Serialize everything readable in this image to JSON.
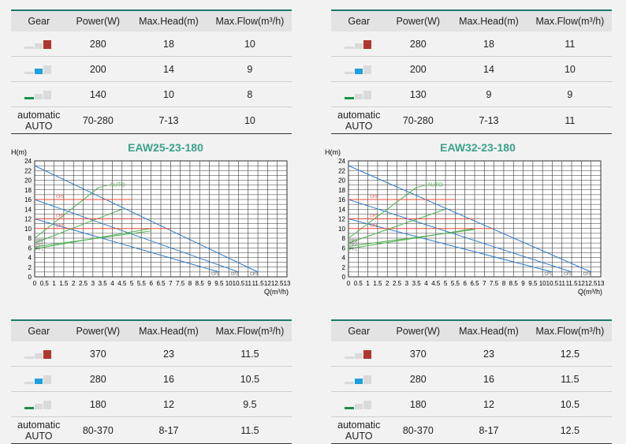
{
  "headers": [
    "Gear",
    "Power(W)",
    "Max.Head(m)",
    "Max.Flow(m³/h)"
  ],
  "colors": {
    "red": "#b0372f",
    "blue": "#1e9fe0",
    "green": "#18924a",
    "grid": "#333333",
    "curve_blue": "#2e7dc9",
    "curve_green": "#4caf50",
    "curve_red": "#e04b3a",
    "title": "#3aa28a",
    "header_line": "#1b7a6c"
  },
  "tables": [
    {
      "rows": [
        {
          "gear": "gear-3-icon",
          "power": "280",
          "head": "18",
          "flow": "10"
        },
        {
          "gear": "gear-2-icon",
          "power": "200",
          "head": "14",
          "flow": "9"
        },
        {
          "gear": "gear-1-icon",
          "power": "140",
          "head": "10",
          "flow": "8"
        },
        {
          "gear_l1": "automatic",
          "gear_l2": "AUTO",
          "power": "70-280",
          "head": "7-13",
          "flow": "10"
        }
      ]
    },
    {
      "rows": [
        {
          "gear": "gear-3-icon",
          "power": "280",
          "head": "18",
          "flow": "11"
        },
        {
          "gear": "gear-2-icon",
          "power": "200",
          "head": "14",
          "flow": "10"
        },
        {
          "gear": "gear-1-icon",
          "power": "130",
          "head": "9",
          "flow": "9"
        },
        {
          "gear_l1": "automatic",
          "gear_l2": "AUTO",
          "power": "70-280",
          "head": "7-13",
          "flow": "11"
        }
      ]
    },
    {
      "rows": [
        {
          "gear": "gear-3-icon",
          "power": "370",
          "head": "23",
          "flow": "11.5"
        },
        {
          "gear": "gear-2-icon",
          "power": "280",
          "head": "16",
          "flow": "10.5"
        },
        {
          "gear": "gear-1-icon",
          "power": "180",
          "head": "12",
          "flow": "9.5"
        },
        {
          "gear_l1": "automatic",
          "gear_l2": "AUTO",
          "power": "80-370",
          "head": "8-17",
          "flow": "11.5"
        }
      ]
    },
    {
      "rows": [
        {
          "gear": "gear-3-icon",
          "power": "370",
          "head": "23",
          "flow": "12.5"
        },
        {
          "gear": "gear-2-icon",
          "power": "280",
          "head": "16",
          "flow": "11.5"
        },
        {
          "gear": "gear-1-icon",
          "power": "180",
          "head": "12",
          "flow": "10.5"
        },
        {
          "gear_l1": "automatic",
          "gear_l2": "AUTO",
          "power": "80-370",
          "head": "8-17",
          "flow": "12.5"
        }
      ]
    }
  ],
  "chart_data": [
    {
      "type": "line",
      "title": "EAW25-23-180",
      "ylabel": "H(m)",
      "xlabel": "Q(m³/h)",
      "xlim": [
        0,
        13
      ],
      "ylim": [
        0,
        24
      ],
      "grid": true,
      "xticks": [
        "0",
        "0.5",
        "1",
        "1.5",
        "2",
        "2.5",
        "3",
        "3.5",
        "4",
        "4.5",
        "5",
        "5.5",
        "6",
        "6.5",
        "7",
        "7.5",
        "8",
        "8.5",
        "9",
        "9.5",
        "10",
        "10.5",
        "11",
        "11.5",
        "12",
        "12.5",
        "13"
      ],
      "yticks": [
        "0",
        "2",
        "4",
        "6",
        "8",
        "10",
        "12",
        "14",
        "16",
        "18",
        "20",
        "22",
        "24"
      ],
      "series": [
        {
          "color": "blue",
          "points": [
            [
              0,
              23
            ],
            [
              11.5,
              1
            ]
          ],
          "end_label": "CP3"
        },
        {
          "color": "blue",
          "points": [
            [
              0,
              16
            ],
            [
              10.5,
              1
            ]
          ],
          "end_label": "CP2"
        },
        {
          "color": "blue",
          "points": [
            [
              0,
              12
            ],
            [
              9.5,
              1
            ]
          ],
          "end_label": "CP1"
        },
        {
          "color": "green",
          "points": [
            [
              0,
              8
            ],
            [
              3.3,
              18.5
            ]
          ],
          "label": "AUTO"
        },
        {
          "color": "green",
          "points": [
            [
              0,
              7
            ],
            [
              4.5,
              14
            ]
          ],
          "label": "PP3"
        },
        {
          "color": "green",
          "points": [
            [
              0,
              6.2
            ],
            [
              6,
              9.5
            ]
          ],
          "label": "PP2"
        },
        {
          "color": "green",
          "points": [
            [
              0,
              5.8
            ],
            [
              6,
              10
            ]
          ],
          "label": "PP1"
        },
        {
          "color": "red",
          "points": [
            [
              0,
              16
            ],
            [
              5,
              16
            ]
          ],
          "label": "CP3"
        },
        {
          "color": "red",
          "points": [
            [
              0,
              12
            ],
            [
              5.5,
              12
            ]
          ],
          "label": "CP2"
        },
        {
          "color": "red",
          "points": [
            [
              0,
              10
            ],
            [
              7,
              10
            ]
          ],
          "label": "CP1"
        }
      ]
    },
    {
      "type": "line",
      "title": "EAW32-23-180",
      "ylabel": "H(m)",
      "xlabel": "Q(m³/h)",
      "xlim": [
        0,
        13
      ],
      "ylim": [
        0,
        24
      ],
      "grid": true,
      "xticks": [
        "0",
        "0.5",
        "1",
        "1.5",
        "2",
        "2.5",
        "3",
        "3.5",
        "4",
        "4.5",
        "5",
        "5.5",
        "6",
        "6.5",
        "7",
        "7.5",
        "8",
        "8.5",
        "9",
        "9.5",
        "10",
        "10.5",
        "11",
        "11.5",
        "12",
        "12.5",
        "13"
      ],
      "yticks": [
        "0",
        "2",
        "4",
        "6",
        "8",
        "10",
        "12",
        "14",
        "16",
        "18",
        "20",
        "22",
        "24"
      ],
      "series": [
        {
          "color": "blue",
          "points": [
            [
              0,
              23
            ],
            [
              12.5,
              1
            ]
          ],
          "end_label": "CP3"
        },
        {
          "color": "blue",
          "points": [
            [
              0,
              16
            ],
            [
              11.5,
              1
            ]
          ],
          "end_label": "CP2"
        },
        {
          "color": "blue",
          "points": [
            [
              0,
              12
            ],
            [
              10.5,
              1
            ]
          ],
          "end_label": "CP1"
        },
        {
          "color": "green",
          "points": [
            [
              0,
              8
            ],
            [
              3.5,
              18.5
            ]
          ],
          "label": "AUTO"
        },
        {
          "color": "green",
          "points": [
            [
              0,
              7
            ],
            [
              5,
              14
            ]
          ],
          "label": "PP3"
        },
        {
          "color": "green",
          "points": [
            [
              0,
              6.3
            ],
            [
              6.5,
              9.8
            ]
          ],
          "label": "PP2"
        },
        {
          "color": "green",
          "points": [
            [
              0,
              5.8
            ],
            [
              6.5,
              10
            ]
          ],
          "label": "PP1"
        },
        {
          "color": "red",
          "points": [
            [
              0,
              16
            ],
            [
              5.5,
              16
            ]
          ],
          "label": "CP3"
        },
        {
          "color": "red",
          "points": [
            [
              0,
              12
            ],
            [
              6.5,
              12
            ]
          ],
          "label": "CP2"
        },
        {
          "color": "red",
          "points": [
            [
              0,
              10
            ],
            [
              7.5,
              10
            ]
          ],
          "label": "CP1"
        }
      ]
    }
  ]
}
